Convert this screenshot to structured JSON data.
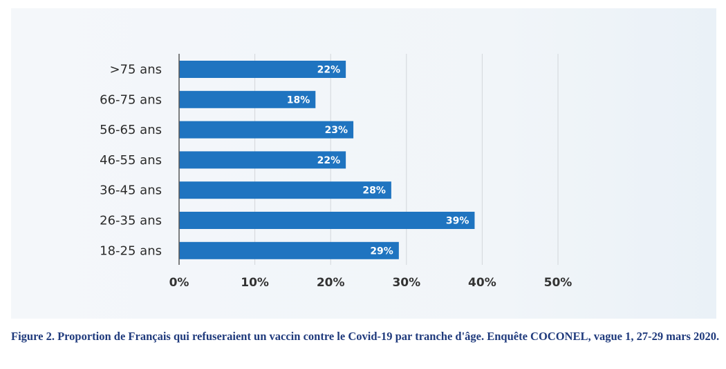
{
  "chart_data": {
    "type": "bar",
    "orientation": "horizontal",
    "categories": [
      ">75 ans",
      "66-75 ans",
      "56-65 ans",
      "46-55 ans",
      "36-45 ans",
      "26-35 ans",
      "18-25 ans"
    ],
    "values": [
      22,
      18,
      23,
      22,
      28,
      39,
      29
    ],
    "data_labels": [
      "22%",
      "18%",
      "23%",
      "22%",
      "28%",
      "39%",
      "29%"
    ],
    "x_ticks": [
      0,
      10,
      20,
      30,
      40,
      50
    ],
    "x_tick_labels": [
      "0%",
      "10%",
      "20%",
      "30%",
      "40%",
      "50%"
    ],
    "xlim": [
      0,
      50
    ],
    "grid": "vertical",
    "bar_color": "#1f74c0"
  },
  "caption": "Figure 2. Proportion de Français qui refuseraient un vaccin contre le Covid-19 par tranche d'âge. Enquête COCONEL, vague 1, 27-29 mars 2020."
}
